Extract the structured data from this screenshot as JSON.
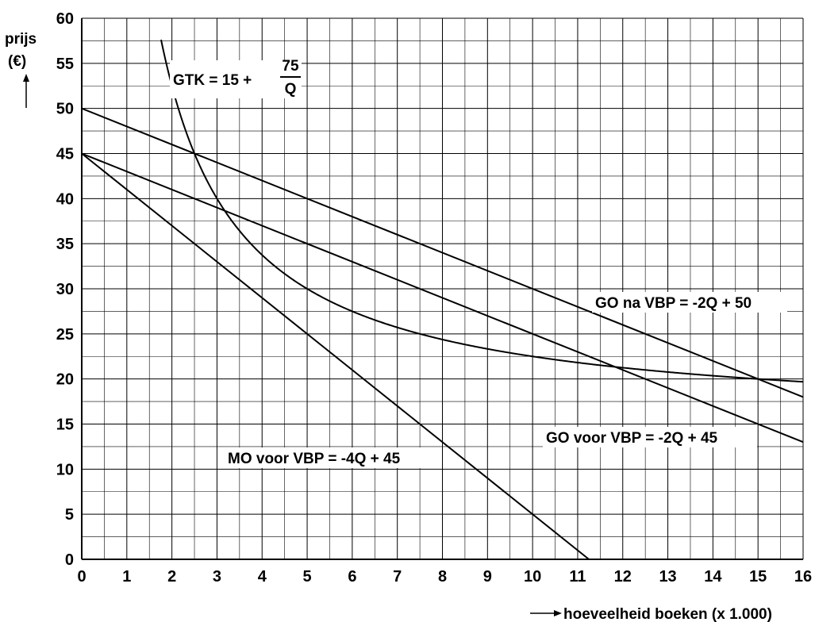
{
  "chart_data": {
    "type": "line",
    "ylabel_line1": "prijs",
    "ylabel_line2": "(€)",
    "xlabel": "hoeveelheid boeken (x 1.000)",
    "xlim": [
      0,
      16
    ],
    "ylim": [
      0,
      60
    ],
    "x_ticks": [
      "0",
      "1",
      "2",
      "3",
      "4",
      "5",
      "6",
      "7",
      "8",
      "9",
      "10",
      "11",
      "12",
      "13",
      "14",
      "15",
      "16"
    ],
    "y_ticks": [
      "0",
      "5",
      "10",
      "15",
      "20",
      "25",
      "30",
      "35",
      "40",
      "45",
      "50",
      "55",
      "60"
    ],
    "grid": true,
    "series": [
      {
        "name": "GO na VBP = -2Q + 50",
        "x": [
          0,
          16
        ],
        "y": [
          50,
          18
        ]
      },
      {
        "name": "GO voor VBP = -2Q + 45",
        "x": [
          0,
          16
        ],
        "y": [
          45,
          13
        ]
      },
      {
        "name": "MO voor VBP = -4Q + 45",
        "x": [
          0,
          11.25
        ],
        "y": [
          45,
          0
        ]
      },
      {
        "name": "GTK",
        "x": [
          1.76,
          2,
          2.5,
          3,
          3.5,
          4,
          5,
          6,
          7,
          8,
          9,
          10,
          11,
          12,
          13,
          14,
          15,
          16
        ],
        "y": [
          57.6,
          52.5,
          45,
          40,
          36.4,
          33.75,
          30,
          27.5,
          25.7,
          24.4,
          23.3,
          22.5,
          21.8,
          21.25,
          20.8,
          20.4,
          20,
          19.7
        ]
      }
    ],
    "annotations": {
      "gtk_prefix": "GTK = 15 +",
      "gtk_numerator": "75",
      "gtk_denominator": "Q",
      "go_na": "GO na VBP = -2Q + 50",
      "go_voor": "GO voor VBP = -2Q + 45",
      "mo_voor": "MO voor VBP = -4Q + 45"
    }
  }
}
